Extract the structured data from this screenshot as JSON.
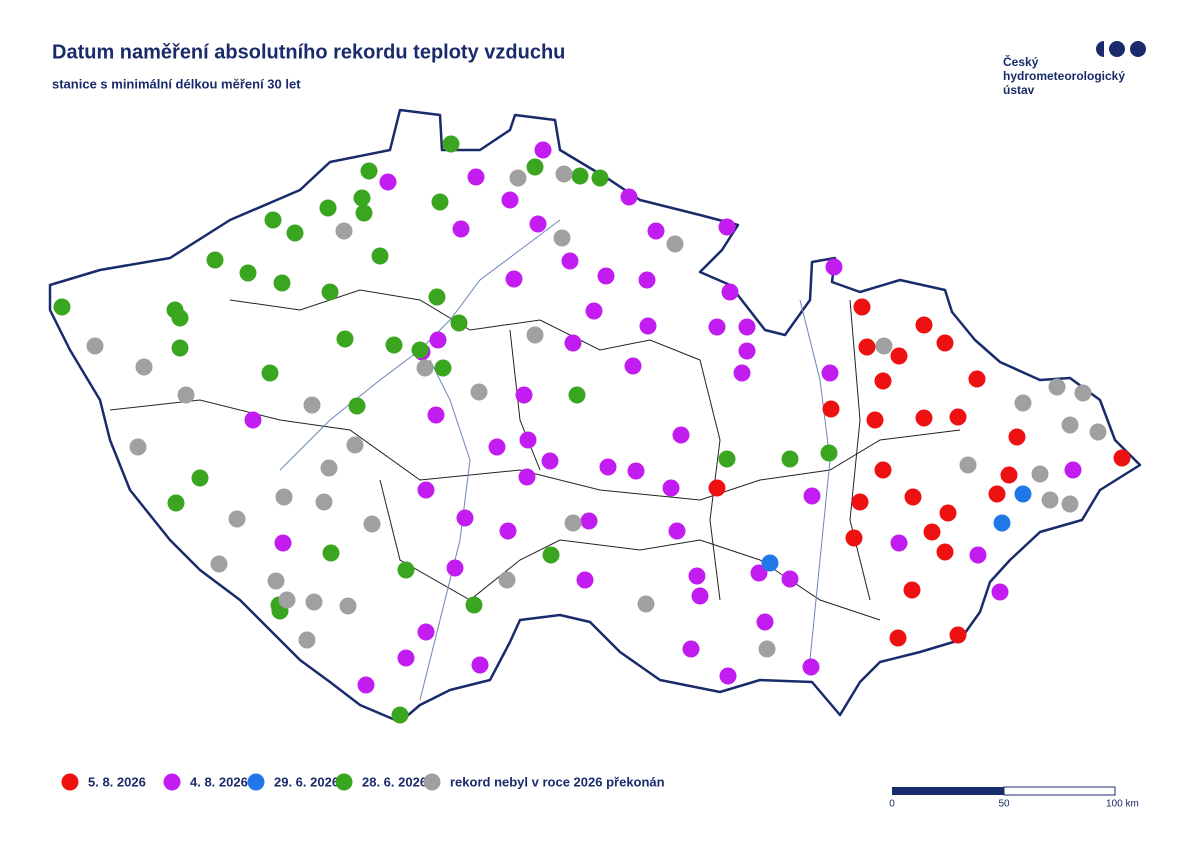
{
  "header": {
    "title": "Datum naměření absolutního rekordu teploty vzduchu",
    "subtitle": "stanice s minimální délkou měření 30 let"
  },
  "logo": {
    "lines": [
      "Český",
      "hydrometeorologický",
      "ústav"
    ]
  },
  "legend": [
    {
      "label": "5. 8. 2026",
      "color": "#ee1111"
    },
    {
      "label": "4. 8. 2026",
      "color": "#c21cf0"
    },
    {
      "label": "29. 6. 2026",
      "color": "#1f77e8"
    },
    {
      "label": "28. 6. 2026",
      "color": "#3aa51f"
    },
    {
      "label": "rekord nebyl v roce 2026 překonán",
      "color": "#a0a0a0"
    }
  ],
  "scale_bar": {
    "labels": [
      "0",
      "50",
      "100 km"
    ]
  }
}
